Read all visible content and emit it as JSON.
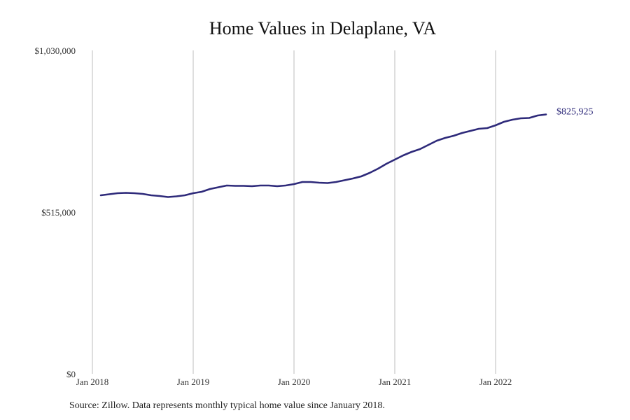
{
  "chart_data": {
    "type": "line",
    "title": "Home Values in Delaplane, VA",
    "xlabel": "",
    "ylabel": "",
    "ylim": [
      0,
      1030000
    ],
    "y_ticks": [
      "$0",
      "$515,000",
      "$1,030,000"
    ],
    "y_tick_values": [
      0,
      515000,
      1030000
    ],
    "x_ticks": [
      "Jan 2018",
      "Jan 2019",
      "Jan 2020",
      "Jan 2021",
      "Jan 2022"
    ],
    "x_tick_values": [
      "2018-01",
      "2019-01",
      "2020-01",
      "2021-01",
      "2022-01"
    ],
    "grid": "vertical",
    "line_color": "#2e2a7a",
    "end_label": "$825,925",
    "x": [
      "2018-02",
      "2018-03",
      "2018-04",
      "2018-05",
      "2018-06",
      "2018-07",
      "2018-08",
      "2018-09",
      "2018-10",
      "2018-11",
      "2018-12",
      "2019-01",
      "2019-02",
      "2019-03",
      "2019-04",
      "2019-05",
      "2019-06",
      "2019-07",
      "2019-08",
      "2019-09",
      "2019-10",
      "2019-11",
      "2019-12",
      "2020-01",
      "2020-02",
      "2020-03",
      "2020-04",
      "2020-05",
      "2020-06",
      "2020-07",
      "2020-08",
      "2020-09",
      "2020-10",
      "2020-11",
      "2020-12",
      "2021-01",
      "2021-02",
      "2021-03",
      "2021-04",
      "2021-05",
      "2021-06",
      "2021-07",
      "2021-08",
      "2021-09",
      "2021-10",
      "2021-11",
      "2021-12",
      "2022-01",
      "2022-02",
      "2022-03",
      "2022-04",
      "2022-05",
      "2022-06",
      "2022-07"
    ],
    "values": [
      568500,
      571800,
      575200,
      576300,
      575200,
      573000,
      568500,
      566300,
      562900,
      565200,
      568500,
      575200,
      579600,
      588600,
      594100,
      599700,
      598600,
      598600,
      597500,
      599700,
      599700,
      597500,
      599700,
      604100,
      610800,
      610800,
      608600,
      607500,
      610800,
      616400,
      622000,
      628700,
      639800,
      653200,
      668800,
      682200,
      695600,
      706700,
      715600,
      729000,
      742400,
      751300,
      758000,
      766900,
      773600,
      780300,
      782500,
      791400,
      802600,
      809300,
      813700,
      814800,
      822600,
      825925
    ]
  },
  "footer": {
    "source": "Source: Zillow. Data represents monthly typical home value since January 2018."
  }
}
